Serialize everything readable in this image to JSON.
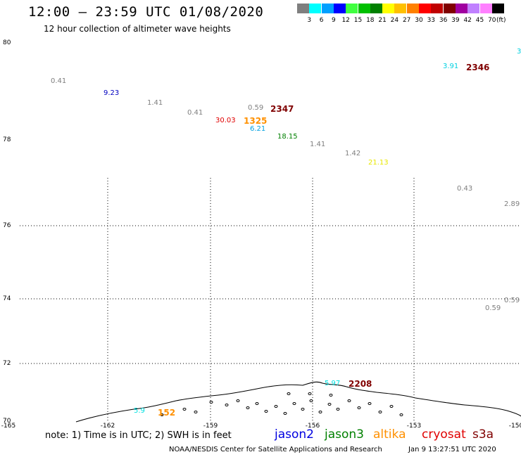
{
  "header": {
    "title": "12:00 – 23:59 UTC 01/08/2020",
    "subtitle": "12 hour collection of altimeter wave heights"
  },
  "legend": {
    "unit": "(ft)",
    "bins": [
      {
        "label": "3",
        "color": "#7f7f7f"
      },
      {
        "label": "6",
        "color": "#00ffff"
      },
      {
        "label": "9",
        "color": "#00a0ff"
      },
      {
        "label": "12",
        "color": "#0000ff"
      },
      {
        "label": "15",
        "color": "#40ff40"
      },
      {
        "label": "18",
        "color": "#00c000"
      },
      {
        "label": "21",
        "color": "#008000"
      },
      {
        "label": "24",
        "color": "#ffff00"
      },
      {
        "label": "27",
        "color": "#ffc000"
      },
      {
        "label": "30",
        "color": "#ff8000"
      },
      {
        "label": "33",
        "color": "#ff0000"
      },
      {
        "label": "36",
        "color": "#c00000"
      },
      {
        "label": "39",
        "color": "#800000"
      },
      {
        "label": "42",
        "color": "#a000a0"
      },
      {
        "label": "45",
        "color": "#c080ff"
      },
      {
        "label": "70",
        "color": "#ff80ff"
      },
      {
        "label": "",
        "color": "#000000"
      }
    ]
  },
  "axes": {
    "lat_labels": [
      "80",
      "78",
      "76",
      "74",
      "72",
      "70"
    ],
    "lon_labels": [
      "-165",
      "-162",
      "-159",
      "-156",
      "-153",
      "-150"
    ]
  },
  "observations": [
    {
      "text": "0.41",
      "color": "#7f7f7f"
    },
    {
      "text": "9.23",
      "color": "#0000c0"
    },
    {
      "text": "1.41",
      "color": "#7f7f7f"
    },
    {
      "text": "0.41",
      "color": "#7f7f7f"
    },
    {
      "text": "0.59",
      "color": "#7f7f7f"
    },
    {
      "text": "2347",
      "color": "#800000"
    },
    {
      "text": "30.03",
      "color": "#e00000"
    },
    {
      "text": "1325",
      "color": "#ff9000"
    },
    {
      "text": "6.21",
      "color": "#00a0e0"
    },
    {
      "text": "18.15",
      "color": "#008000"
    },
    {
      "text": "1.41",
      "color": "#7f7f7f"
    },
    {
      "text": "1.42",
      "color": "#7f7f7f"
    },
    {
      "text": "21.13",
      "color": "#e8e800"
    },
    {
      "text": "3.91",
      "color": "#00d0e0"
    },
    {
      "text": "2346",
      "color": "#800000"
    },
    {
      "text": "3",
      "color": "#00d0e0"
    },
    {
      "text": "0.43",
      "color": "#7f7f7f"
    },
    {
      "text": "2.89",
      "color": "#7f7f7f"
    },
    {
      "text": "0.59",
      "color": "#7f7f7f"
    },
    {
      "text": "0.59",
      "color": "#7f7f7f"
    },
    {
      "text": "5.97",
      "color": "#00e0e0"
    },
    {
      "text": "2208",
      "color": "#800000"
    },
    {
      "text": "5.9",
      "color": "#00e0e0"
    },
    {
      "text": "152",
      "color": "#ff9000"
    }
  ],
  "footer": {
    "note": "note: 1) Time is in UTC; 2) SWH is in feet",
    "satellites": [
      {
        "name": "jason2",
        "color": "#0000e0"
      },
      {
        "name": "jason3",
        "color": "#008000"
      },
      {
        "name": "altika",
        "color": "#ff9000"
      },
      {
        "name": "cryosat",
        "color": "#e00000"
      },
      {
        "name": "s3a",
        "color": "#800000"
      }
    ],
    "credit": "NOAA/NESDIS Center for Satellite Applications and Research",
    "timestamp": "Jan  9 13:27:51 UTC 2020"
  }
}
